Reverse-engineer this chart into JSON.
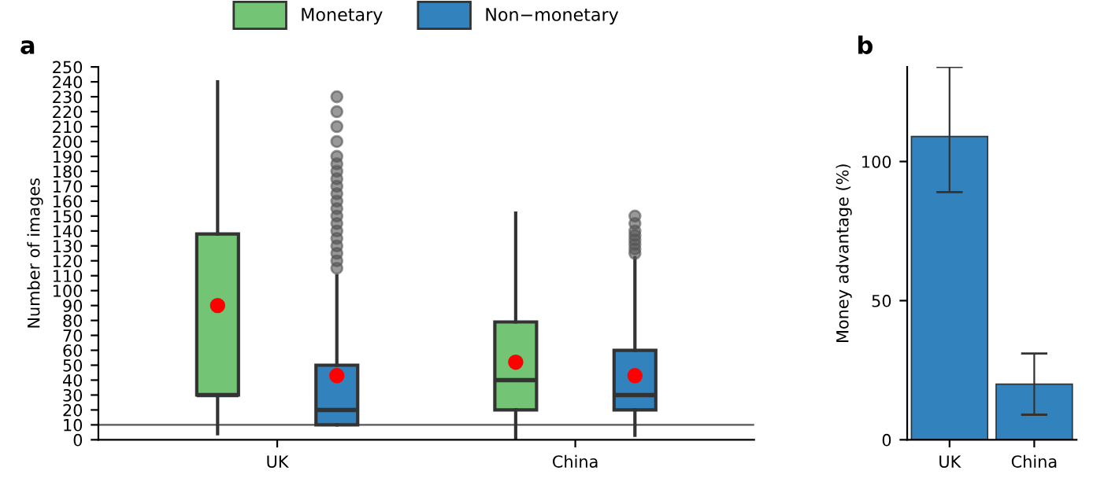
{
  "chart_data": [
    {
      "type": "box",
      "title": "a",
      "ylabel": "Number of images",
      "categories": [
        "UK",
        "China"
      ],
      "ylim": [
        0,
        250
      ],
      "yticks": [
        0,
        10,
        20,
        30,
        40,
        50,
        60,
        70,
        80,
        90,
        100,
        110,
        120,
        130,
        140,
        150,
        160,
        170,
        180,
        190,
        200,
        210,
        220,
        230,
        240,
        250
      ],
      "grid": false,
      "legend": "top",
      "ref_lines": [
        {
          "axis": "y",
          "value": 10,
          "label": null
        }
      ],
      "series": [
        {
          "name": "Monetary",
          "color": "#74c476",
          "boxes": [
            {
              "low": 4,
              "q1": 30,
              "median": 30,
              "q3": 138,
              "high": 240,
              "mean": 90
            },
            {
              "low": 0,
              "q1": 20,
              "median": 40,
              "q3": 79,
              "high": 152,
              "mean": 52
            }
          ]
        },
        {
          "name": "Non−monetary",
          "color": "#3182bd",
          "boxes": [
            {
              "low": 10,
              "q1": 10,
              "median": 20,
              "q3": 50,
              "high": 110,
              "mean": 43,
              "outliers": [
                115,
                120,
                125,
                130,
                135,
                140,
                145,
                150,
                155,
                160,
                165,
                170,
                175,
                180,
                185,
                190,
                200,
                210,
                220,
                230
              ]
            },
            {
              "low": 3,
              "q1": 20,
              "median": 30,
              "q3": 60,
              "high": 122,
              "mean": 43,
              "outliers": [
                125,
                128,
                131,
                134,
                137,
                140,
                145,
                150
              ]
            }
          ]
        }
      ]
    },
    {
      "type": "bar",
      "title": "b",
      "ylabel": "Money advantage (%)",
      "categories": [
        "UK",
        "China"
      ],
      "ylim": [
        0,
        134
      ],
      "yticks": [
        0,
        50,
        100
      ],
      "grid": false,
      "series": [
        {
          "color": "#3182bd",
          "values": [
            109,
            20
          ],
          "errors": [
            [
              89,
              134
            ],
            [
              9,
              31
            ]
          ]
        }
      ]
    }
  ]
}
